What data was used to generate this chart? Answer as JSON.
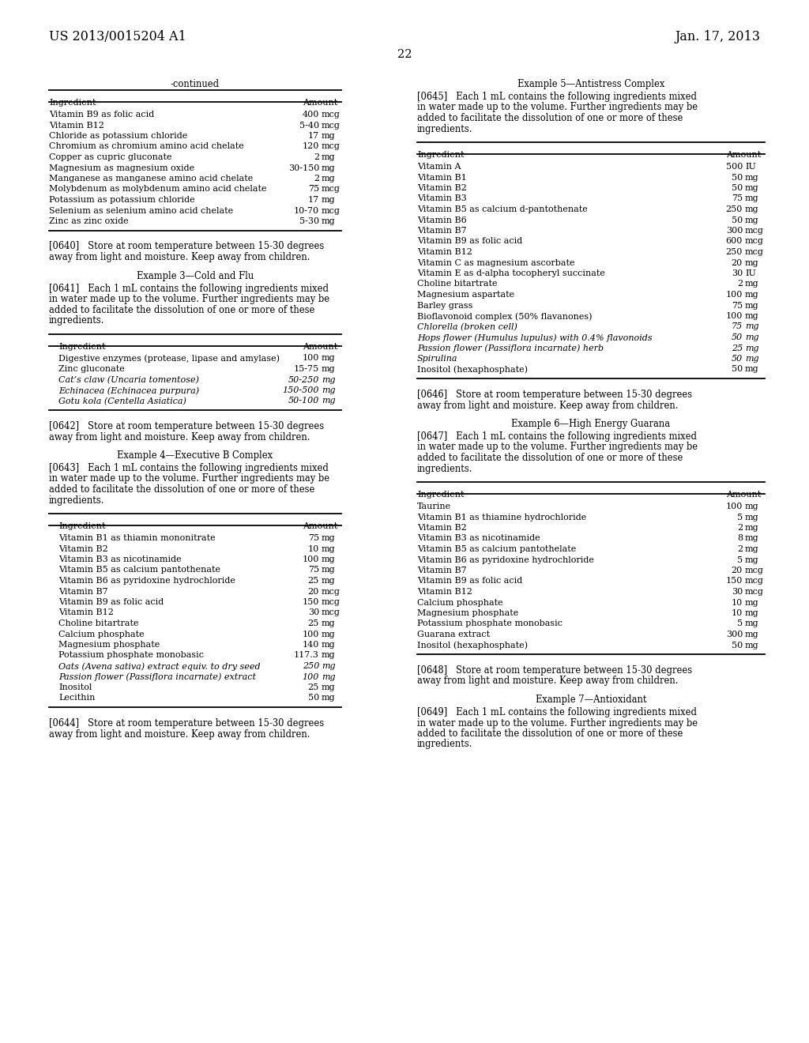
{
  "page_header_left": "US 2013/0015204 A1",
  "page_header_right": "Jan. 17, 2013",
  "page_number": "22",
  "bg_color": "#ffffff",
  "left_col": {
    "continued_title": "-continued",
    "continued_table": {
      "headers": [
        "Ingredient",
        "Amount"
      ],
      "rows": [
        [
          "Vitamin B9 as folic acid",
          "400",
          "mcg"
        ],
        [
          "Vitamin B12",
          "5-40",
          "mcg"
        ],
        [
          "Chloride as potassium chloride",
          "17",
          "mg"
        ],
        [
          "Chromium as chromium amino acid chelate",
          "120",
          "mcg"
        ],
        [
          "Copper as cupric gluconate",
          "2",
          "mg"
        ],
        [
          "Magnesium as magnesium oxide",
          "30-150",
          "mg"
        ],
        [
          "Manganese as manganese amino acid chelate",
          "2",
          "mg"
        ],
        [
          "Molybdenum as molybdenum amino acid chelate",
          "75",
          "mcg"
        ],
        [
          "Potassium as potassium chloride",
          "17",
          "mg"
        ],
        [
          "Selenium as selenium amino acid chelate",
          "10-70",
          "mcg"
        ],
        [
          "Zinc as zinc oxide",
          "5-30",
          "mg"
        ]
      ],
      "italic_rows": []
    },
    "para640_lines": [
      "[0640]   Store at room temperature between 15-30 degrees",
      "away from light and moisture. Keep away from children."
    ],
    "example3_title": "Example 3—Cold and Flu",
    "para641_lines": [
      "[0641]   Each 1 mL contains the following ingredients mixed",
      "in water made up to the volume. Further ingredients may be",
      "added to facilitate the dissolution of one or more of these",
      "ingredients."
    ],
    "table3": {
      "headers": [
        "Ingredient",
        "Amount"
      ],
      "rows": [
        [
          "Digestive enzymes (protease, lipase and amylase)",
          "100",
          "mg"
        ],
        [
          "Zinc gluconate",
          "15-75",
          "mg"
        ],
        [
          "Cat’s claw (Uncaria tomentose)",
          "50-250",
          "mg"
        ],
        [
          "Echinacea (Echinacea purpura)",
          "150-500",
          "mg"
        ],
        [
          "Gotu kola (Centella Asiatica)",
          "50-100",
          "mg"
        ]
      ],
      "italic_rows": [
        2,
        3,
        4
      ]
    },
    "para642_lines": [
      "[0642]   Store at room temperature between 15-30 degrees",
      "away from light and moisture. Keep away from children."
    ],
    "example4_title": "Example 4—Executive B Complex",
    "para643_lines": [
      "[0643]   Each 1 mL contains the following ingredients mixed",
      "in water made up to the volume. Further ingredients may be",
      "added to facilitate the dissolution of one or more of these",
      "ingredients."
    ],
    "table4": {
      "headers": [
        "Ingredient",
        "Amount"
      ],
      "rows": [
        [
          "Vitamin B1 as thiamin mononitrate",
          "75",
          "mg"
        ],
        [
          "Vitamin B2",
          "10",
          "mg"
        ],
        [
          "Vitamin B3 as nicotinamide",
          "100",
          "mg"
        ],
        [
          "Vitamin B5 as calcium pantothenate",
          "75",
          "mg"
        ],
        [
          "Vitamin B6 as pyridoxine hydrochloride",
          "25",
          "mg"
        ],
        [
          "Vitamin B7",
          "20",
          "mcg"
        ],
        [
          "Vitamin B9 as folic acid",
          "150",
          "mcg"
        ],
        [
          "Vitamin B12",
          "30",
          "mcg"
        ],
        [
          "Choline bitartrate",
          "25",
          "mg"
        ],
        [
          "Calcium phosphate",
          "100",
          "mg"
        ],
        [
          "Magnesium phosphate",
          "140",
          "mg"
        ],
        [
          "Potassium phosphate monobasic",
          "117.3",
          "mg"
        ],
        [
          "Oats (Avena sativa) extract equiv. to dry seed",
          "250",
          "mg"
        ],
        [
          "Passion flower (Passiflora incarnate) extract",
          "100",
          "mg"
        ],
        [
          "Inositol",
          "25",
          "mg"
        ],
        [
          "Lecithin",
          "50",
          "mg"
        ]
      ],
      "italic_rows": [
        12,
        13
      ]
    },
    "para644_lines": [
      "[0644]   Store at room temperature between 15-30 degrees",
      "away from light and moisture. Keep away from children."
    ]
  },
  "right_col": {
    "example5_title": "Example 5—Antistress Complex",
    "para645_lines": [
      "[0645]   Each 1 mL contains the following ingredients mixed",
      "in water made up to the volume. Further ingredients may be",
      "added to facilitate the dissolution of one or more of these",
      "ingredients."
    ],
    "table5": {
      "headers": [
        "Ingredient",
        "Amount"
      ],
      "rows": [
        [
          "Vitamin A",
          "500",
          "IU"
        ],
        [
          "Vitamin B1",
          "50",
          "mg"
        ],
        [
          "Vitamin B2",
          "50",
          "mg"
        ],
        [
          "Vitamin B3",
          "75",
          "mg"
        ],
        [
          "Vitamin B5 as calcium d-pantothenate",
          "250",
          "mg"
        ],
        [
          "Vitamin B6",
          "50",
          "mg"
        ],
        [
          "Vitamin B7",
          "300",
          "mcg"
        ],
        [
          "Vitamin B9 as folic acid",
          "600",
          "mcg"
        ],
        [
          "Vitamin B12",
          "250",
          "mcg"
        ],
        [
          "Vitamin C as magnesium ascorbate",
          "20",
          "mg"
        ],
        [
          "Vitamin E as d-alpha tocopheryl succinate",
          "30",
          "IU"
        ],
        [
          "Choline bitartrate",
          "2",
          "mg"
        ],
        [
          "Magnesium aspartate",
          "100",
          "mg"
        ],
        [
          "Barley grass",
          "75",
          "mg"
        ],
        [
          "Bioflavonoid complex (50% flavanones)",
          "100",
          "mg"
        ],
        [
          "Chlorella (broken cell)",
          "75",
          "mg"
        ],
        [
          "Hops flower (Humulus lupulus) with 0.4% flavonoids",
          "50",
          "mg"
        ],
        [
          "Passion flower (Passiflora incarnate) herb",
          "25",
          "mg"
        ],
        [
          "Spirulina",
          "50",
          "mg"
        ],
        [
          "Inositol (hexaphosphate)",
          "50",
          "mg"
        ]
      ],
      "italic_rows": [
        15,
        16,
        17,
        18
      ]
    },
    "para646_lines": [
      "[0646]   Store at room temperature between 15-30 degrees",
      "away from light and moisture. Keep away from children."
    ],
    "example6_title": "Example 6—High Energy Guarana",
    "para647_lines": [
      "[0647]   Each 1 mL contains the following ingredients mixed",
      "in water made up to the volume. Further ingredients may be",
      "added to facilitate the dissolution of one or more of these",
      "ingredients."
    ],
    "table6": {
      "headers": [
        "Ingredient",
        "Amount"
      ],
      "rows": [
        [
          "Taurine",
          "100",
          "mg"
        ],
        [
          "Vitamin B1 as thiamine hydrochloride",
          "5",
          "mg"
        ],
        [
          "Vitamin B2",
          "2",
          "mg"
        ],
        [
          "Vitamin B3 as nicotinamide",
          "8",
          "mg"
        ],
        [
          "Vitamin B5 as calcium pantothelate",
          "2",
          "mg"
        ],
        [
          "Vitamin B6 as pyridoxine hydrochloride",
          "5",
          "mg"
        ],
        [
          "Vitamin B7",
          "20",
          "mcg"
        ],
        [
          "Vitamin B9 as folic acid",
          "150",
          "mcg"
        ],
        [
          "Vitamin B12",
          "30",
          "mcg"
        ],
        [
          "Calcium phosphate",
          "10",
          "mg"
        ],
        [
          "Magnesium phosphate",
          "10",
          "mg"
        ],
        [
          "Potassium phosphate monobasic",
          "5",
          "mg"
        ],
        [
          "Guarana extract",
          "300",
          "mg"
        ],
        [
          "Inositol (hexaphosphate)",
          "50",
          "mg"
        ]
      ],
      "italic_rows": []
    },
    "para648_lines": [
      "[0648]   Store at room temperature between 15-30 degrees",
      "away from light and moisture. Keep away from children."
    ],
    "example7_title": "Example 7—Antioxidant",
    "para649_lines": [
      "[0649]   Each 1 mL contains the following ingredients mixed",
      "in water made up to the volume. Further ingredients may be",
      "added to facilitate the dissolution of one or more of these",
      "ingredients."
    ]
  }
}
